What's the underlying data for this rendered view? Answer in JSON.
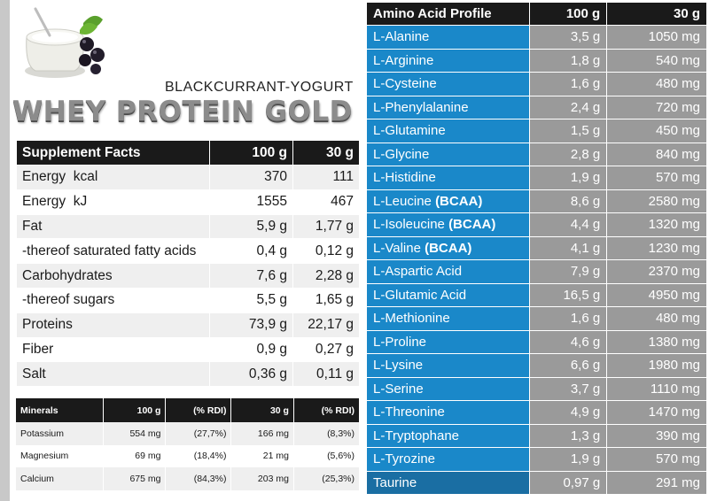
{
  "product": {
    "flavor": "BLACKCURRANT-YOGURT",
    "brand": "WHEY PROTEIN GOLD"
  },
  "supplement_facts": {
    "headers": [
      "Supplement Facts",
      "100 g",
      "30 g"
    ],
    "rows": [
      {
        "name": "Energy  kcal",
        "v100": "370",
        "v30": "111"
      },
      {
        "name": "Energy  kJ",
        "v100": "1555",
        "v30": "467"
      },
      {
        "name": "Fat",
        "v100": "5,9 g",
        "v30": "1,77 g"
      },
      {
        "name": "-thereof saturated fatty acids",
        "v100": "0,4 g",
        "v30": "0,12 g"
      },
      {
        "name": "Carbohydrates",
        "v100": "7,6 g",
        "v30": "2,28 g"
      },
      {
        "name": "-thereof sugars",
        "v100": "5,5 g",
        "v30": "1,65 g"
      },
      {
        "name": "Proteins",
        "v100": "73,9 g",
        "v30": "22,17 g"
      },
      {
        "name": "Fiber",
        "v100": "0,9 g",
        "v30": "0,27 g"
      },
      {
        "name": "Salt",
        "v100": "0,36 g",
        "v30": "0,11 g"
      }
    ]
  },
  "minerals": {
    "headers": [
      "Minerals",
      "100 g",
      "(% RDI)",
      "30 g",
      "(% RDI)"
    ],
    "rows": [
      {
        "name": "Potassium",
        "v100": "554 mg",
        "rdi100": "(27,7%)",
        "v30": "166 mg",
        "rdi30": "(8,3%)"
      },
      {
        "name": "Magnesium",
        "v100": "69 mg",
        "rdi100": "(18,4%)",
        "v30": "21 mg",
        "rdi30": "(5,6%)"
      },
      {
        "name": "Calcium",
        "v100": "675 mg",
        "rdi100": "(84,3%)",
        "v30": "203 mg",
        "rdi30": "(25,3%)"
      }
    ]
  },
  "amino_acids": {
    "headers": [
      "Amino Acid Profile",
      "100 g",
      "30 g"
    ],
    "rows": [
      {
        "name": "L-Alanine",
        "v100": "3,5 g",
        "v30": "1050 mg"
      },
      {
        "name": "L-Arginine",
        "v100": "1,8 g",
        "v30": "540 mg"
      },
      {
        "name": "L-Cysteine",
        "v100": "1,6 g",
        "v30": "480 mg"
      },
      {
        "name": "L-Phenylalanine",
        "v100": "2,4 g",
        "v30": "720 mg"
      },
      {
        "name": "L-Glutamine",
        "v100": "1,5 g",
        "v30": "450 mg"
      },
      {
        "name": "L-Glycine",
        "v100": "2,8 g",
        "v30": "840 mg"
      },
      {
        "name": "L-Histidine",
        "v100": "1,9 g",
        "v30": "570 mg"
      },
      {
        "name": "L-Leucine",
        "tag": "(BCAA)",
        "v100": "8,6 g",
        "v30": "2580 mg"
      },
      {
        "name": "L-Isoleucine",
        "tag": "(BCAA)",
        "v100": "4,4 g",
        "v30": "1320 mg"
      },
      {
        "name": "L-Valine",
        "tag": "(BCAA)",
        "v100": "4,1 g",
        "v30": "1230 mg"
      },
      {
        "name": "L-Aspartic Acid",
        "v100": "7,9 g",
        "v30": "2370 mg"
      },
      {
        "name": "L-Glutamic Acid",
        "v100": "16,5 g",
        "v30": "4950 mg"
      },
      {
        "name": "L-Methionine",
        "v100": "1,6 g",
        "v30": "480 mg"
      },
      {
        "name": "L-Proline",
        "v100": "4,6 g",
        "v30": "1380 mg"
      },
      {
        "name": "L-Lysine",
        "v100": "6,6 g",
        "v30": "1980 mg"
      },
      {
        "name": "L-Serine",
        "v100": "3,7 g",
        "v30": "1110 mg"
      },
      {
        "name": "L-Threonine",
        "v100": "4,9 g",
        "v30": "1470 mg"
      },
      {
        "name": "L-Tryptophane",
        "v100": "1,3 g",
        "v30": "390 mg"
      },
      {
        "name": "L-Tyrozine",
        "v100": "1,9 g",
        "v30": "570 mg"
      },
      {
        "name": "Taurine",
        "v100": "0,97 g",
        "v30": "291 mg"
      }
    ]
  }
}
